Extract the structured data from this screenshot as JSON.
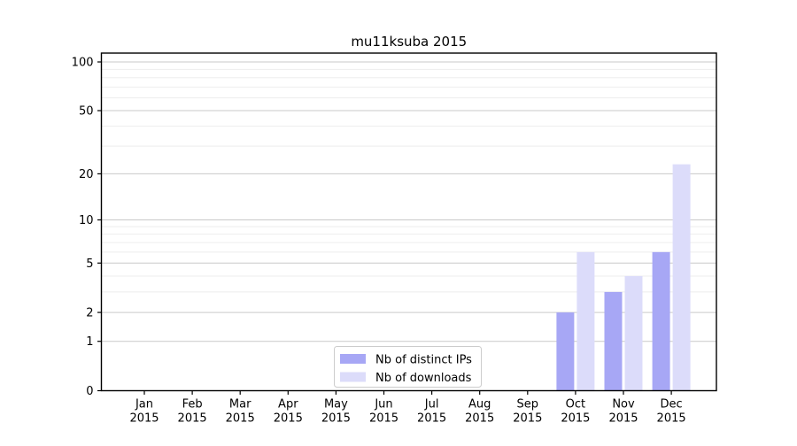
{
  "chart_data": {
    "type": "bar",
    "title": "mu11ksuba 2015",
    "categories": [
      "Jan",
      "Feb",
      "Mar",
      "Apr",
      "May",
      "Jun",
      "Jul",
      "Aug",
      "Sep",
      "Oct",
      "Nov",
      "Dec"
    ],
    "category_year": "2015",
    "series": [
      {
        "name": "Nb of distinct IPs",
        "color": "#a7a7f5",
        "values": [
          0,
          0,
          0,
          0,
          0,
          0,
          0,
          0,
          0,
          2,
          3,
          6
        ]
      },
      {
        "name": "Nb of downloads",
        "color": "#dcdcfa",
        "values": [
          0,
          0,
          0,
          0,
          0,
          0,
          0,
          0,
          0,
          6,
          4,
          23
        ]
      }
    ],
    "yscale": "log1p",
    "ylabel": "",
    "xlabel": "",
    "y_major_ticks": [
      0,
      1,
      2,
      5,
      10,
      20,
      50,
      100
    ],
    "y_minor_gridlines": [
      3,
      4,
      6,
      7,
      8,
      9,
      30,
      40,
      60,
      70,
      80,
      90
    ],
    "ylim": [
      0,
      113
    ],
    "grid": "horizontal",
    "legend_position": "bottom-center"
  },
  "colors": {
    "major_grid": "#c9c9c9",
    "minor_grid": "#ededed",
    "spine": "#000000",
    "legend_border": "#cccccc",
    "background": "#ffffff"
  }
}
